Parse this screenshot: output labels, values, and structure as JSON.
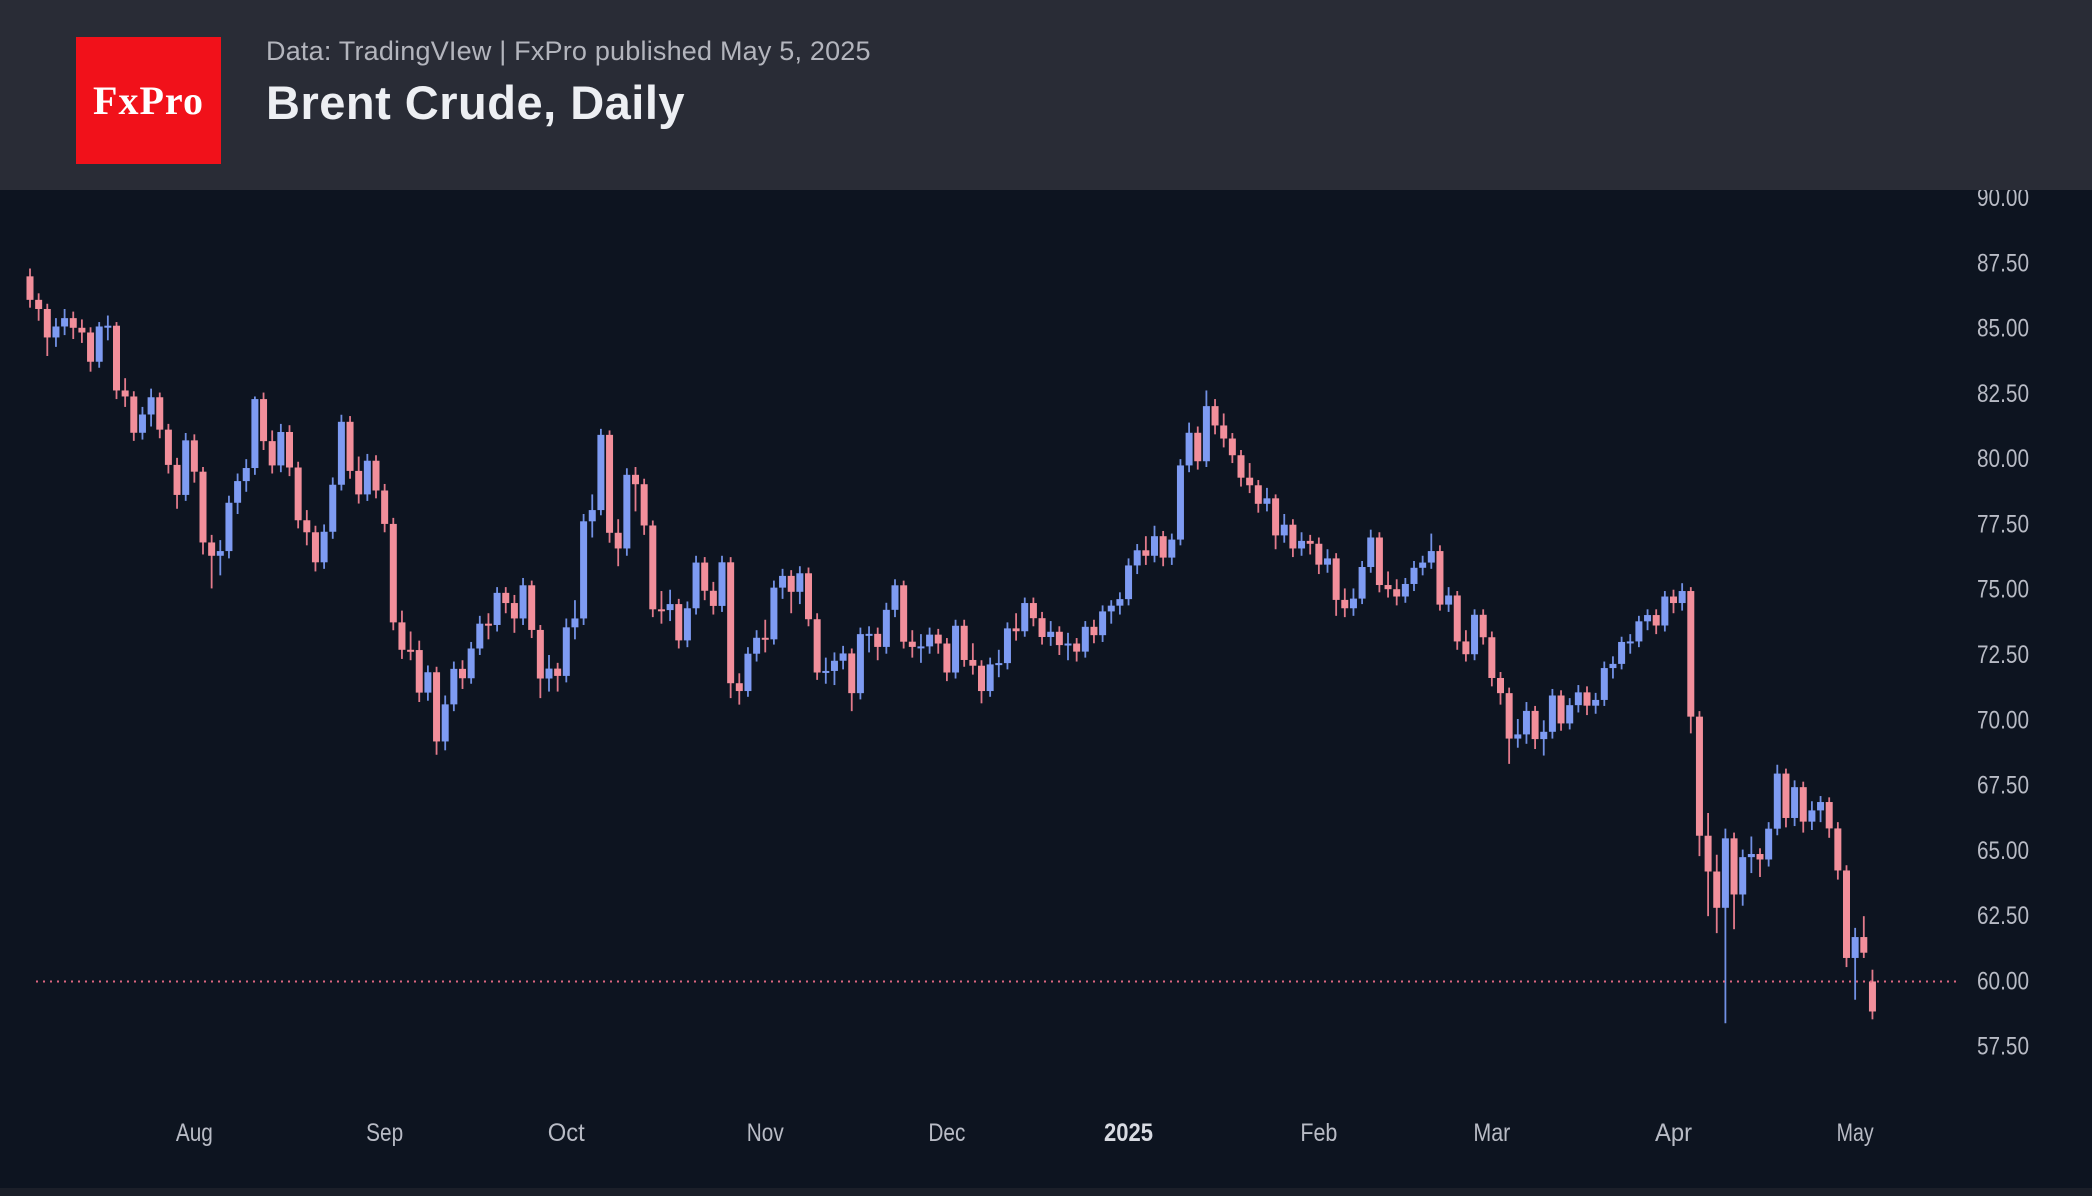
{
  "header": {
    "logo_text": "FxPro",
    "source_line": "Data: TradingVIew | FxPro published May 5, 2025",
    "title": "Brent Crude, Daily"
  },
  "colors": {
    "header_bg": "#292c36",
    "chart_bg": "#0d1420",
    "logo_red": "#f1111a",
    "up_body": "#7e9bf2",
    "up_wick": "#7190e4",
    "down_body": "#f28f9b",
    "down_wick": "#e27a8b",
    "axis_text": "#b8bbc5",
    "axis_text_bold": "#d8dbe2",
    "support_line": "#dd6680",
    "footer_bg": "#1b1f29"
  },
  "chart_data": {
    "type": "candlestick",
    "title": "Brent Crude, Daily",
    "symbol": "Brent Crude",
    "timeframe": "Daily",
    "legend_position": "none",
    "grid": false,
    "y_axis": {
      "min": 57.5,
      "max": 90.0,
      "ticks": [
        "90.00",
        "87.50",
        "85.00",
        "82.50",
        "80.00",
        "77.50",
        "75.00",
        "72.50",
        "70.00",
        "67.50",
        "65.00",
        "62.50",
        "60.00",
        "57.50"
      ]
    },
    "x_axis": {
      "ticks": [
        {
          "label": "Aug",
          "index": 19,
          "bold": false
        },
        {
          "label": "Sep",
          "index": 41,
          "bold": false
        },
        {
          "label": "Oct",
          "index": 62,
          "bold": false
        },
        {
          "label": "Nov",
          "index": 85,
          "bold": false
        },
        {
          "label": "Dec",
          "index": 106,
          "bold": false
        },
        {
          "label": "2025",
          "index": 127,
          "bold": true
        },
        {
          "label": "Feb",
          "index": 149,
          "bold": false
        },
        {
          "label": "Mar",
          "index": 169,
          "bold": false
        },
        {
          "label": "Apr",
          "index": 190,
          "bold": false
        },
        {
          "label": "May",
          "index": 211,
          "bold": false
        }
      ]
    },
    "support_line": {
      "price": 60.0,
      "style": "dotted"
    },
    "candles": [
      [
        87.0,
        87.3,
        85.8,
        86.1
      ],
      [
        86.1,
        86.35,
        85.3,
        85.75
      ],
      [
        85.75,
        85.95,
        83.95,
        84.66
      ],
      [
        84.66,
        85.4,
        84.3,
        85.08
      ],
      [
        85.08,
        85.75,
        84.75,
        85.4
      ],
      [
        85.4,
        85.65,
        84.6,
        85.03
      ],
      [
        85.03,
        85.35,
        84.45,
        84.85
      ],
      [
        84.85,
        85.05,
        83.35,
        83.73
      ],
      [
        83.73,
        85.25,
        83.5,
        85.08
      ],
      [
        85.08,
        85.5,
        84.55,
        85.11
      ],
      [
        85.11,
        85.25,
        82.3,
        82.63
      ],
      [
        82.63,
        83.1,
        82.0,
        82.4
      ],
      [
        82.4,
        82.6,
        80.7,
        81.01
      ],
      [
        81.01,
        82.0,
        80.75,
        81.71
      ],
      [
        81.71,
        82.7,
        81.25,
        82.37
      ],
      [
        82.37,
        82.55,
        80.8,
        81.13
      ],
      [
        81.13,
        81.35,
        79.45,
        79.78
      ],
      [
        79.78,
        80.05,
        78.1,
        78.63
      ],
      [
        78.63,
        81.0,
        78.4,
        80.72
      ],
      [
        80.72,
        80.95,
        79.1,
        79.52
      ],
      [
        79.52,
        79.7,
        76.35,
        76.81
      ],
      [
        76.81,
        77.1,
        75.05,
        76.3
      ],
      [
        76.3,
        76.9,
        75.55,
        76.48
      ],
      [
        76.48,
        78.6,
        76.2,
        78.33
      ],
      [
        78.33,
        79.45,
        77.9,
        79.16
      ],
      [
        79.16,
        80.0,
        78.75,
        79.66
      ],
      [
        79.66,
        82.4,
        79.4,
        82.3
      ],
      [
        82.3,
        82.55,
        80.35,
        80.69
      ],
      [
        80.69,
        81.1,
        79.45,
        79.76
      ],
      [
        79.76,
        81.35,
        79.5,
        81.04
      ],
      [
        81.04,
        81.3,
        79.35,
        79.68
      ],
      [
        79.68,
        79.9,
        77.35,
        77.66
      ],
      [
        77.66,
        78.05,
        76.7,
        77.2
      ],
      [
        77.2,
        77.45,
        75.7,
        76.05
      ],
      [
        76.05,
        77.5,
        75.8,
        77.22
      ],
      [
        77.22,
        79.3,
        76.95,
        79.02
      ],
      [
        79.02,
        81.7,
        78.8,
        81.43
      ],
      [
        81.43,
        81.65,
        79.25,
        79.55
      ],
      [
        79.55,
        80.1,
        78.3,
        78.65
      ],
      [
        78.65,
        80.2,
        78.4,
        79.94
      ],
      [
        79.94,
        80.15,
        78.5,
        78.8
      ],
      [
        78.8,
        79.05,
        77.2,
        77.52
      ],
      [
        77.52,
        77.75,
        73.45,
        73.75
      ],
      [
        73.75,
        74.2,
        72.35,
        72.7
      ],
      [
        72.7,
        73.4,
        72.3,
        72.69
      ],
      [
        72.69,
        73.05,
        70.7,
        71.06
      ],
      [
        71.06,
        72.1,
        70.75,
        71.84
      ],
      [
        71.84,
        72.05,
        68.68,
        69.19
      ],
      [
        69.19,
        70.95,
        68.85,
        70.61
      ],
      [
        70.61,
        72.25,
        70.35,
        71.97
      ],
      [
        71.97,
        72.3,
        71.2,
        71.61
      ],
      [
        71.61,
        73.0,
        71.4,
        72.75
      ],
      [
        72.75,
        74.0,
        72.5,
        73.7
      ],
      [
        73.7,
        74.1,
        73.1,
        73.65
      ],
      [
        73.65,
        75.1,
        73.4,
        74.88
      ],
      [
        74.88,
        75.1,
        74.1,
        74.49
      ],
      [
        74.49,
        74.8,
        73.35,
        73.9
      ],
      [
        73.9,
        75.45,
        73.65,
        75.17
      ],
      [
        75.17,
        75.35,
        73.15,
        73.46
      ],
      [
        73.46,
        73.65,
        70.85,
        71.6
      ],
      [
        71.6,
        72.5,
        71.1,
        71.98
      ],
      [
        71.98,
        72.2,
        71.1,
        71.7
      ],
      [
        71.7,
        73.9,
        71.45,
        73.56
      ],
      [
        73.56,
        74.6,
        73.1,
        73.9
      ],
      [
        73.9,
        77.9,
        73.65,
        77.62
      ],
      [
        77.62,
        78.65,
        77.0,
        78.05
      ],
      [
        78.05,
        81.16,
        77.85,
        80.93
      ],
      [
        80.93,
        81.1,
        76.8,
        77.18
      ],
      [
        77.18,
        77.7,
        75.9,
        76.58
      ],
      [
        76.58,
        79.65,
        76.3,
        79.4
      ],
      [
        79.4,
        79.7,
        78.0,
        79.04
      ],
      [
        79.04,
        79.25,
        77.1,
        77.46
      ],
      [
        77.46,
        77.65,
        73.95,
        74.25
      ],
      [
        74.25,
        74.95,
        73.7,
        74.22
      ],
      [
        74.22,
        75.0,
        73.8,
        74.45
      ],
      [
        74.45,
        74.65,
        72.75,
        73.06
      ],
      [
        73.06,
        74.55,
        72.8,
        74.29
      ],
      [
        74.29,
        76.3,
        74.05,
        76.04
      ],
      [
        76.04,
        76.25,
        74.6,
        74.96
      ],
      [
        74.96,
        75.3,
        74.05,
        74.38
      ],
      [
        74.38,
        76.3,
        74.15,
        76.05
      ],
      [
        76.05,
        76.25,
        70.85,
        71.42
      ],
      [
        71.42,
        71.8,
        70.6,
        71.12
      ],
      [
        71.12,
        72.8,
        70.9,
        72.55
      ],
      [
        72.55,
        73.45,
        72.25,
        73.16
      ],
      [
        73.16,
        73.85,
        72.6,
        73.1
      ],
      [
        73.1,
        75.35,
        72.9,
        75.08
      ],
      [
        75.08,
        75.8,
        74.65,
        75.53
      ],
      [
        75.53,
        75.75,
        74.1,
        74.92
      ],
      [
        74.92,
        75.9,
        74.45,
        75.63
      ],
      [
        75.63,
        75.85,
        73.6,
        73.87
      ],
      [
        73.87,
        74.1,
        71.55,
        71.83
      ],
      [
        71.83,
        72.4,
        71.4,
        71.89
      ],
      [
        71.89,
        72.6,
        71.35,
        72.28
      ],
      [
        72.28,
        72.85,
        71.95,
        72.56
      ],
      [
        72.56,
        72.75,
        70.35,
        71.04
      ],
      [
        71.04,
        73.55,
        70.8,
        73.3
      ],
      [
        73.3,
        73.6,
        72.6,
        73.31
      ],
      [
        73.31,
        73.55,
        72.3,
        72.81
      ],
      [
        72.81,
        74.5,
        72.55,
        74.23
      ],
      [
        74.23,
        75.4,
        73.95,
        75.17
      ],
      [
        75.17,
        75.35,
        72.75,
        73.01
      ],
      [
        73.01,
        73.45,
        72.4,
        72.81
      ],
      [
        72.81,
        73.3,
        72.2,
        72.83
      ],
      [
        72.83,
        73.55,
        72.55,
        73.28
      ],
      [
        73.28,
        73.5,
        72.55,
        72.94
      ],
      [
        72.94,
        73.15,
        71.5,
        71.83
      ],
      [
        71.83,
        73.85,
        71.6,
        73.62
      ],
      [
        73.62,
        73.85,
        72.05,
        72.31
      ],
      [
        72.31,
        72.95,
        71.75,
        72.09
      ],
      [
        72.09,
        72.3,
        70.65,
        71.12
      ],
      [
        71.12,
        72.4,
        70.9,
        72.14
      ],
      [
        72.14,
        72.7,
        71.65,
        72.19
      ],
      [
        72.19,
        73.75,
        71.95,
        73.52
      ],
      [
        73.52,
        74.1,
        73.05,
        73.41
      ],
      [
        73.41,
        74.7,
        73.2,
        74.49
      ],
      [
        74.49,
        74.7,
        73.6,
        73.91
      ],
      [
        73.91,
        74.15,
        72.9,
        73.19
      ],
      [
        73.19,
        73.8,
        72.85,
        73.39
      ],
      [
        73.39,
        73.6,
        72.5,
        72.88
      ],
      [
        72.88,
        73.35,
        72.3,
        72.94
      ],
      [
        72.94,
        73.15,
        72.25,
        72.63
      ],
      [
        72.63,
        73.8,
        72.4,
        73.58
      ],
      [
        73.58,
        73.85,
        72.95,
        73.26
      ],
      [
        73.26,
        74.4,
        73.0,
        74.17
      ],
      [
        74.17,
        74.6,
        73.7,
        74.39
      ],
      [
        74.39,
        74.9,
        74.05,
        74.64
      ],
      [
        74.64,
        76.2,
        74.4,
        75.93
      ],
      [
        75.93,
        76.75,
        75.6,
        76.51
      ],
      [
        76.51,
        77.05,
        75.95,
        76.3
      ],
      [
        76.3,
        77.45,
        76.05,
        77.05
      ],
      [
        77.05,
        77.25,
        75.9,
        76.23
      ],
      [
        76.23,
        77.15,
        75.95,
        76.92
      ],
      [
        76.92,
        80.0,
        76.7,
        79.76
      ],
      [
        79.76,
        81.4,
        79.5,
        81.01
      ],
      [
        81.01,
        81.25,
        79.6,
        79.92
      ],
      [
        79.92,
        82.63,
        79.7,
        82.03
      ],
      [
        82.03,
        82.3,
        80.95,
        81.29
      ],
      [
        81.29,
        81.75,
        80.45,
        80.79
      ],
      [
        80.79,
        81.0,
        79.85,
        80.15
      ],
      [
        80.15,
        80.35,
        78.95,
        79.29
      ],
      [
        79.29,
        79.85,
        78.7,
        79.0
      ],
      [
        79.0,
        79.2,
        77.95,
        78.29
      ],
      [
        78.29,
        78.9,
        78.0,
        78.5
      ],
      [
        78.5,
        78.65,
        76.55,
        77.08
      ],
      [
        77.08,
        77.9,
        76.8,
        77.49
      ],
      [
        77.49,
        77.7,
        76.25,
        76.58
      ],
      [
        76.58,
        77.2,
        76.3,
        76.87
      ],
      [
        76.87,
        77.1,
        76.35,
        76.76
      ],
      [
        76.76,
        77.0,
        75.6,
        75.96
      ],
      [
        75.96,
        76.55,
        75.65,
        76.2
      ],
      [
        76.2,
        76.4,
        74.0,
        74.61
      ],
      [
        74.61,
        75.05,
        73.95,
        74.29
      ],
      [
        74.29,
        75.05,
        74.0,
        74.66
      ],
      [
        74.66,
        76.1,
        74.45,
        75.87
      ],
      [
        75.87,
        77.3,
        75.65,
        77.0
      ],
      [
        77.0,
        77.2,
        74.9,
        75.18
      ],
      [
        75.18,
        75.7,
        74.7,
        75.02
      ],
      [
        75.02,
        75.4,
        74.4,
        74.74
      ],
      [
        74.74,
        75.45,
        74.5,
        75.22
      ],
      [
        75.22,
        76.1,
        74.95,
        75.84
      ],
      [
        75.84,
        76.3,
        75.55,
        76.04
      ],
      [
        76.04,
        77.15,
        75.8,
        76.48
      ],
      [
        76.48,
        76.7,
        74.2,
        74.43
      ],
      [
        74.43,
        75.1,
        74.15,
        74.78
      ],
      [
        74.78,
        74.95,
        72.7,
        73.02
      ],
      [
        73.02,
        73.45,
        72.25,
        72.53
      ],
      [
        72.53,
        74.25,
        72.3,
        74.04
      ],
      [
        74.04,
        74.25,
        72.9,
        73.18
      ],
      [
        73.18,
        73.4,
        71.3,
        71.62
      ],
      [
        71.62,
        71.85,
        70.6,
        71.04
      ],
      [
        71.04,
        71.25,
        68.33,
        69.3
      ],
      [
        69.3,
        70.05,
        68.95,
        69.46
      ],
      [
        69.46,
        70.7,
        69.1,
        70.36
      ],
      [
        70.36,
        70.55,
        68.9,
        69.28
      ],
      [
        69.28,
        70.0,
        68.65,
        69.56
      ],
      [
        69.56,
        71.2,
        69.3,
        70.95
      ],
      [
        70.95,
        71.15,
        69.6,
        69.88
      ],
      [
        69.88,
        70.85,
        69.65,
        70.58
      ],
      [
        70.58,
        71.35,
        70.3,
        71.07
      ],
      [
        71.07,
        71.3,
        70.2,
        70.56
      ],
      [
        70.56,
        71.05,
        70.25,
        70.78
      ],
      [
        70.78,
        72.25,
        70.55,
        72.0
      ],
      [
        72.0,
        72.45,
        71.6,
        72.16
      ],
      [
        72.16,
        73.2,
        71.95,
        73.0
      ],
      [
        73.0,
        73.3,
        72.55,
        73.02
      ],
      [
        73.02,
        74.0,
        72.8,
        73.79
      ],
      [
        73.79,
        74.25,
        73.45,
        74.03
      ],
      [
        74.03,
        74.25,
        73.3,
        73.63
      ],
      [
        73.63,
        74.95,
        73.4,
        74.74
      ],
      [
        74.74,
        75.0,
        74.1,
        74.49
      ],
      [
        74.49,
        75.25,
        74.2,
        74.95
      ],
      [
        74.95,
        75.1,
        69.5,
        70.14
      ],
      [
        70.14,
        70.35,
        64.8,
        65.58
      ],
      [
        65.58,
        66.45,
        62.5,
        64.21
      ],
      [
        64.21,
        64.85,
        61.85,
        62.82
      ],
      [
        62.82,
        65.85,
        58.4,
        65.48
      ],
      [
        65.48,
        65.7,
        62.0,
        63.33
      ],
      [
        63.33,
        65.05,
        62.9,
        64.76
      ],
      [
        64.76,
        65.55,
        64.15,
        64.88
      ],
      [
        64.88,
        65.1,
        64.0,
        64.67
      ],
      [
        64.67,
        66.1,
        64.4,
        65.85
      ],
      [
        65.85,
        68.3,
        65.6,
        67.96
      ],
      [
        67.96,
        68.15,
        65.9,
        66.26
      ],
      [
        66.26,
        67.7,
        65.95,
        67.44
      ],
      [
        67.44,
        67.65,
        65.7,
        66.12
      ],
      [
        66.12,
        66.9,
        65.8,
        66.55
      ],
      [
        66.55,
        67.1,
        66.1,
        66.87
      ],
      [
        66.87,
        67.05,
        65.5,
        65.86
      ],
      [
        65.86,
        66.1,
        63.9,
        64.25
      ],
      [
        64.25,
        64.45,
        60.55,
        60.9
      ],
      [
        60.9,
        62.05,
        59.3,
        61.7
      ],
      [
        61.7,
        62.5,
        60.9,
        61.1
      ],
      [
        60.0,
        60.45,
        58.55,
        58.85
      ]
    ]
  }
}
